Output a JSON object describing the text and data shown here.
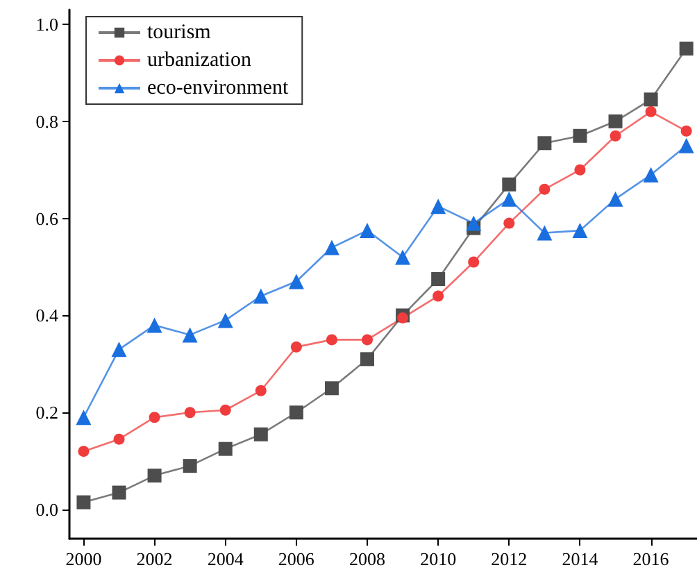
{
  "chart_data": {
    "type": "line",
    "x": [
      2000,
      2001,
      2002,
      2003,
      2004,
      2005,
      2006,
      2007,
      2008,
      2009,
      2010,
      2011,
      2012,
      2013,
      2014,
      2015,
      2016,
      2017
    ],
    "series": [
      {
        "name": "tourism",
        "color": "#4d4d4d",
        "marker": "square",
        "values": [
          0.015,
          0.035,
          0.07,
          0.09,
          0.125,
          0.155,
          0.2,
          0.25,
          0.31,
          0.4,
          0.475,
          0.58,
          0.67,
          0.755,
          0.77,
          0.8,
          0.845,
          0.95
        ]
      },
      {
        "name": "urbanization",
        "color": "#f03c3c",
        "marker": "circle",
        "values": [
          0.12,
          0.145,
          0.19,
          0.2,
          0.205,
          0.245,
          0.335,
          0.35,
          0.35,
          0.395,
          0.44,
          0.51,
          0.59,
          0.66,
          0.7,
          0.77,
          0.82,
          0.78
        ]
      },
      {
        "name": "eco-environment",
        "color": "#1a6fdf",
        "marker": "triangle",
        "values": [
          0.19,
          0.33,
          0.38,
          0.36,
          0.39,
          0.44,
          0.47,
          0.54,
          0.575,
          0.52,
          0.625,
          0.59,
          0.64,
          0.57,
          0.575,
          0.64,
          0.69,
          0.75
        ]
      }
    ],
    "xlim": [
      1999.6,
      2017.3
    ],
    "xticks": [
      2000,
      2002,
      2004,
      2006,
      2008,
      2010,
      2012,
      2014,
      2016
    ],
    "ylim": [
      -0.06,
      1.03
    ],
    "yticks": [
      {
        "value": 0,
        "label": "0.0"
      },
      {
        "value": 0.2,
        "label": "0.2"
      },
      {
        "value": 0.4,
        "label": "0.4"
      },
      {
        "value": 0.6,
        "label": "0.6"
      },
      {
        "value": 0.8,
        "label": "0.8"
      },
      {
        "value": 1,
        "label": "1.0"
      }
    ],
    "grid": false,
    "legend": "top left",
    "line_style": "solid"
  }
}
